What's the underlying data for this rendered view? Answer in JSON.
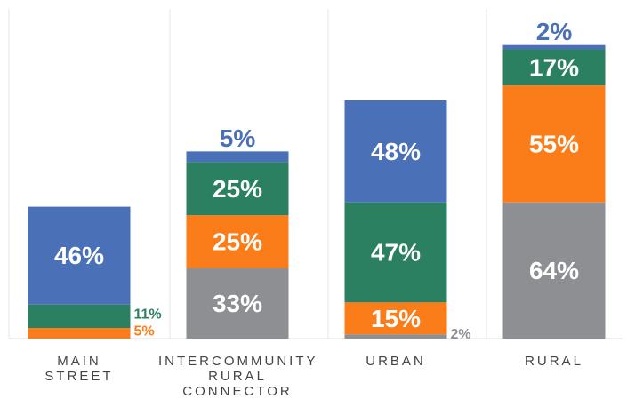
{
  "chart_data": {
    "type": "stacked_bar",
    "categories": [
      "MAIN\nSTREET",
      "INTERCOMMUNITY\nRURAL\nCONNECTOR",
      "URBAN",
      "RURAL"
    ],
    "ylim": [
      0,
      155
    ],
    "series": [
      {
        "color": "#8e8f93",
        "values": [
          0,
          33,
          2,
          64
        ],
        "value_labels": [
          null,
          "33%",
          "2%",
          "64%"
        ]
      },
      {
        "color": "#fb7d1a",
        "values": [
          5,
          25,
          15,
          55
        ],
        "value_labels": [
          "5%",
          "25%",
          "15%",
          "55%"
        ]
      },
      {
        "color": "#2a8060",
        "values": [
          11,
          25,
          47,
          17
        ],
        "value_labels": [
          "11%",
          "25%",
          "47%",
          "17%"
        ]
      },
      {
        "color": "#4a71b8",
        "values": [
          46,
          5,
          48,
          2
        ],
        "value_labels": [
          "46%",
          "5%",
          "48%",
          "2%"
        ]
      }
    ]
  }
}
